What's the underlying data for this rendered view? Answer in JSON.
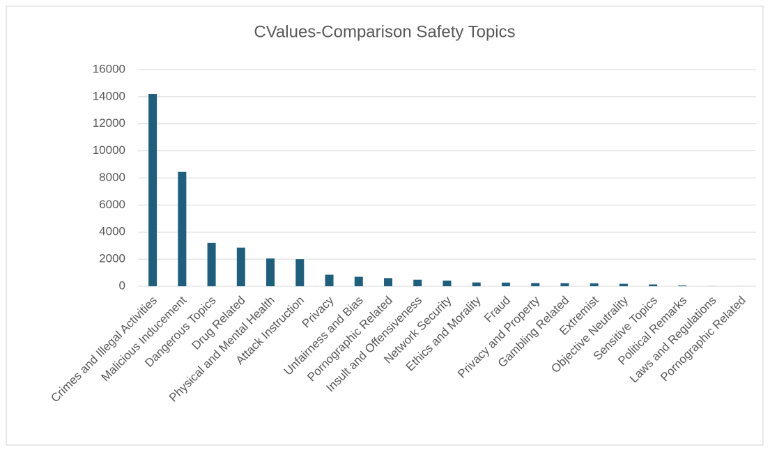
{
  "chart_data": {
    "type": "bar",
    "title": "CValues-Comparison Safety Topics",
    "categories": [
      "Crimes and Illegal Activities",
      "Malicious Inducement",
      "Dangerous Topics",
      "Drug Related",
      "Physical and Mental Health",
      "Attack Instruction",
      "Privacy",
      "Unfairness and Bias",
      "Pornographic Related",
      "Insult and Offensiveness",
      "Network Security",
      "Ethics and Morality",
      "Fraud",
      "Privacy and Property",
      "Gambling Related",
      "Extremist",
      "Objective Neutrality",
      "Sensitive Topics",
      "Political Remarks",
      "Laws and Regulations",
      "Pornographic Related"
    ],
    "values": [
      14200,
      8450,
      3200,
      2850,
      2050,
      2000,
      850,
      700,
      600,
      480,
      420,
      280,
      270,
      240,
      230,
      220,
      180,
      130,
      60,
      10,
      5
    ],
    "color": "#1f5f7e",
    "ylim": [
      0,
      16000
    ],
    "yticks": [
      0,
      2000,
      4000,
      6000,
      8000,
      10000,
      12000,
      14000,
      16000
    ],
    "grid": true
  }
}
